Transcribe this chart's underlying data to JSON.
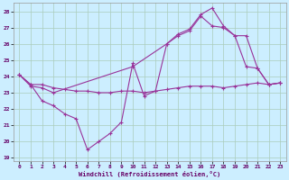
{
  "xlabel": "Windchill (Refroidissement éolien,°C)",
  "background_color": "#cceeff",
  "grid_color": "#aaccbb",
  "line_color": "#993399",
  "xlim": [
    -0.5,
    23.5
  ],
  "ylim": [
    18.8,
    28.5
  ],
  "yticks": [
    19,
    20,
    21,
    22,
    23,
    24,
    25,
    26,
    27,
    28
  ],
  "xticks": [
    0,
    1,
    2,
    3,
    4,
    5,
    6,
    7,
    8,
    9,
    10,
    11,
    12,
    13,
    14,
    15,
    16,
    17,
    18,
    19,
    20,
    21,
    22,
    23
  ],
  "curve1_x": [
    0,
    1,
    2,
    3,
    4,
    5,
    6,
    7,
    8,
    9,
    10,
    11,
    12,
    13,
    14,
    15,
    16,
    17,
    18,
    19,
    20,
    21,
    22,
    23
  ],
  "curve1_y": [
    24.1,
    23.5,
    23.5,
    23.3,
    23.2,
    23.1,
    23.1,
    23.0,
    23.0,
    23.1,
    23.1,
    23.0,
    23.1,
    23.2,
    23.3,
    23.4,
    23.4,
    23.4,
    23.3,
    23.4,
    23.5,
    23.6,
    23.5,
    23.6
  ],
  "curve2_x": [
    0,
    1,
    2,
    3,
    4,
    5,
    6,
    7,
    8,
    9,
    10,
    11,
    12,
    13,
    14,
    15,
    16,
    17,
    18,
    19,
    20,
    21,
    22,
    23
  ],
  "curve2_y": [
    24.1,
    23.5,
    22.5,
    22.2,
    21.7,
    21.4,
    19.5,
    20.0,
    20.5,
    21.2,
    24.8,
    22.8,
    23.1,
    26.0,
    26.6,
    26.9,
    27.8,
    28.2,
    27.1,
    26.5,
    24.6,
    24.5,
    23.5,
    23.6
  ],
  "curve3_x": [
    0,
    1,
    2,
    3,
    10,
    13,
    14,
    15,
    16,
    17,
    18,
    19,
    20,
    21,
    22,
    23
  ],
  "curve3_y": [
    24.1,
    23.4,
    23.3,
    23.0,
    24.6,
    26.0,
    26.5,
    26.8,
    27.7,
    27.1,
    27.0,
    26.5,
    26.5,
    24.5,
    23.5,
    23.6
  ]
}
